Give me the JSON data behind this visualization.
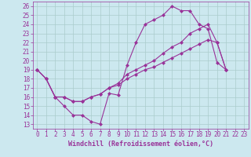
{
  "bg_color": "#cce8ef",
  "grid_color": "#aacccc",
  "line_color": "#993399",
  "xlabel": "Windchill (Refroidissement éolien,°C)",
  "xlim": [
    -0.5,
    23.5
  ],
  "ylim": [
    12.5,
    26.5
  ],
  "xticks": [
    0,
    1,
    2,
    3,
    4,
    5,
    6,
    7,
    8,
    9,
    10,
    11,
    12,
    13,
    14,
    15,
    16,
    17,
    18,
    19,
    20,
    21,
    22,
    23
  ],
  "yticks": [
    13,
    14,
    15,
    16,
    17,
    18,
    19,
    20,
    21,
    22,
    23,
    24,
    25,
    26
  ],
  "hours_main": [
    0,
    1,
    2,
    3,
    4,
    5,
    6,
    7,
    8,
    9,
    10,
    11,
    12,
    13,
    14,
    15,
    16,
    17,
    18,
    19,
    20,
    21
  ],
  "y_main": [
    19,
    18,
    16,
    15,
    14,
    14,
    13.3,
    13,
    16.4,
    16.2,
    19.5,
    22,
    24,
    24.5,
    25,
    26,
    25.5,
    25.5,
    24,
    23.5,
    19.8,
    19
  ],
  "hours_line2": [
    0,
    1,
    2,
    3,
    4,
    5,
    6,
    7,
    8,
    9,
    10,
    11,
    12,
    13,
    14,
    15,
    16,
    17,
    18,
    19,
    20,
    21
  ],
  "y_line2": [
    19,
    18,
    16,
    16,
    15.5,
    15.5,
    16,
    16.3,
    17,
    17.5,
    18.5,
    19,
    19.5,
    20,
    20.8,
    21.5,
    22,
    23,
    23.5,
    24,
    22,
    19
  ],
  "hours_line3": [
    0,
    1,
    2,
    3,
    4,
    5,
    6,
    7,
    8,
    9,
    10,
    11,
    12,
    13,
    14,
    15,
    16,
    17,
    18,
    19,
    20,
    21
  ],
  "y_line3": [
    19,
    18,
    16,
    16,
    15.5,
    15.5,
    16,
    16.3,
    17,
    17.3,
    18,
    18.5,
    19,
    19.3,
    19.8,
    20.3,
    20.8,
    21.3,
    21.8,
    22.3,
    22,
    19
  ],
  "tick_fontsize": 5.5,
  "xlabel_fontsize": 6.0,
  "marker": "D",
  "markersize": 2.0,
  "linewidth": 0.8
}
